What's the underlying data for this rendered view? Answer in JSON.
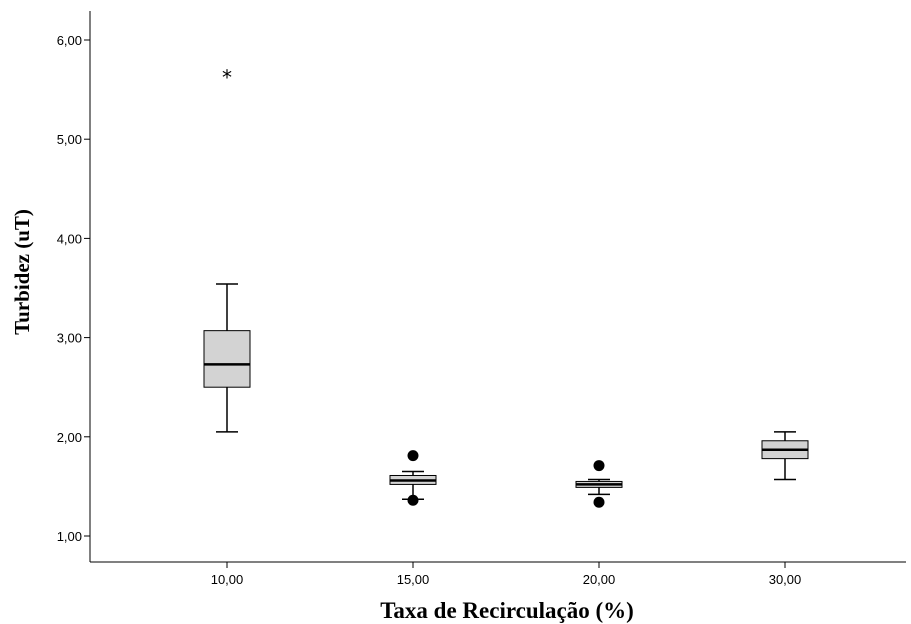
{
  "chart_data": {
    "type": "boxplot",
    "title": "",
    "xlabel": "Taxa de Recirculação (%)",
    "ylabel": "Turbidez  (uT)",
    "categories": [
      "10,00",
      "15,00",
      "20,00",
      "30,00"
    ],
    "ylim": [
      0.95,
      6.3
    ],
    "yticks": [
      1.0,
      2.0,
      3.0,
      4.0,
      5.0,
      6.0
    ],
    "ytick_labels": [
      "1,00",
      "2,00",
      "3,00",
      "4,00",
      "5,00",
      "6,00"
    ],
    "boxes": [
      {
        "category": "10,00",
        "whisker_low": 2.05,
        "q1": 2.5,
        "median": 2.73,
        "q3": 3.07,
        "whisker_high": 3.54,
        "outliers": [],
        "extremes": [
          5.65
        ]
      },
      {
        "category": "15,00",
        "whisker_low": 1.37,
        "q1": 1.52,
        "median": 1.56,
        "q3": 1.61,
        "whisker_high": 1.65,
        "outliers": [
          1.81,
          1.36
        ],
        "extremes": []
      },
      {
        "category": "20,00",
        "whisker_low": 1.42,
        "q1": 1.49,
        "median": 1.52,
        "q3": 1.55,
        "whisker_high": 1.57,
        "outliers": [
          1.71,
          1.34
        ],
        "extremes": []
      },
      {
        "category": "30,00",
        "whisker_low": 1.57,
        "q1": 1.78,
        "median": 1.87,
        "q3": 1.96,
        "whisker_high": 2.05,
        "outliers": [],
        "extremes": []
      }
    ],
    "box_fill": "#d3d3d3",
    "line_color": "#000000",
    "grid": false,
    "legend": "none"
  }
}
